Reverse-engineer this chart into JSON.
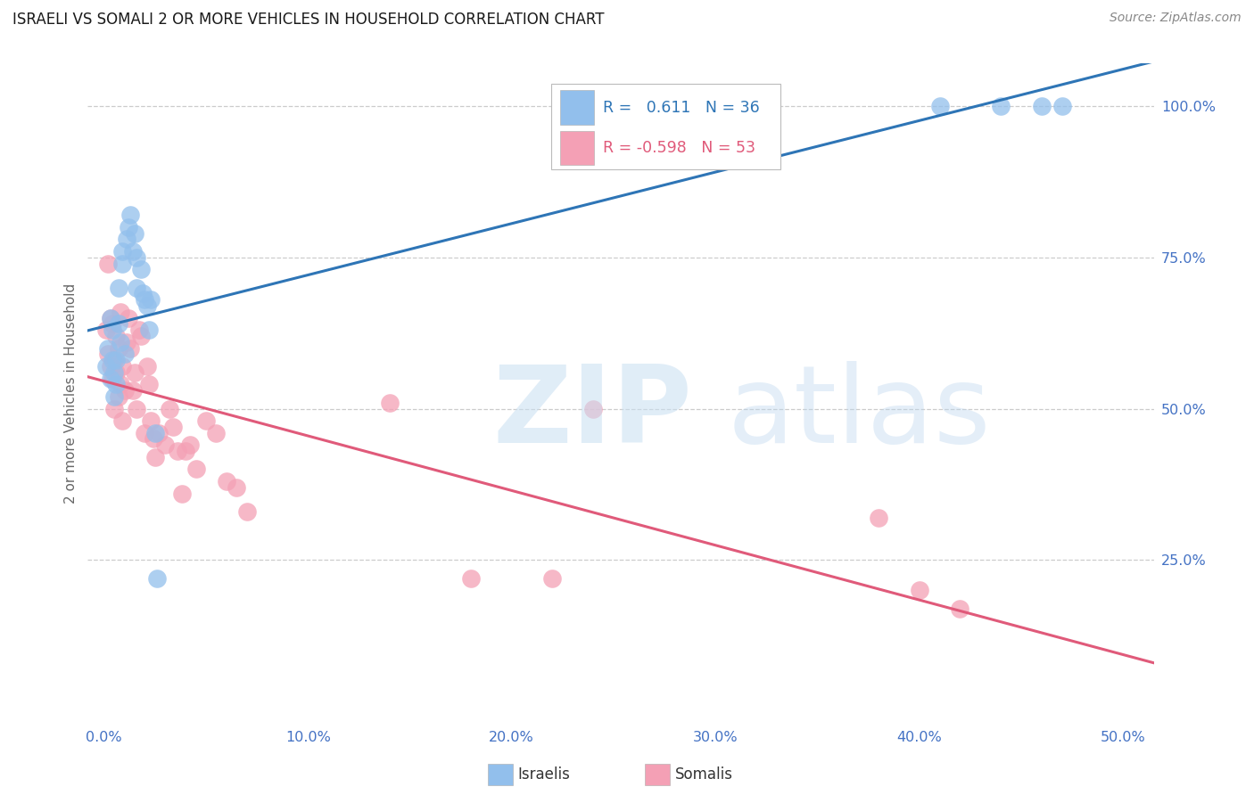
{
  "title": "ISRAELI VS SOMALI 2 OR MORE VEHICLES IN HOUSEHOLD CORRELATION CHART",
  "source": "Source: ZipAtlas.com",
  "ylabel": "2 or more Vehicles in Household",
  "x_tick_labels": [
    "0.0%",
    "10.0%",
    "20.0%",
    "30.0%",
    "40.0%",
    "50.0%"
  ],
  "x_tick_vals": [
    0.0,
    0.1,
    0.2,
    0.3,
    0.4,
    0.5
  ],
  "y_tick_labels": [
    "100.0%",
    "75.0%",
    "50.0%",
    "25.0%"
  ],
  "y_tick_vals": [
    1.0,
    0.75,
    0.5,
    0.25
  ],
  "xlim": [
    -0.008,
    0.515
  ],
  "ylim": [
    -0.02,
    1.07
  ],
  "legend_R_israeli": "0.611",
  "legend_N_israeli": "36",
  "legend_R_somali": "-0.598",
  "legend_N_somali": "53",
  "israeli_color": "#92BFEC",
  "somali_color": "#F4A0B5",
  "israeli_line_color": "#2E75B6",
  "somali_line_color": "#E05A7A",
  "israeli_x": [
    0.001,
    0.002,
    0.003,
    0.003,
    0.004,
    0.004,
    0.005,
    0.005,
    0.006,
    0.006,
    0.007,
    0.007,
    0.008,
    0.009,
    0.009,
    0.01,
    0.011,
    0.012,
    0.013,
    0.014,
    0.015,
    0.016,
    0.018,
    0.019,
    0.02,
    0.021,
    0.022,
    0.023,
    0.025,
    0.026,
    0.016,
    0.32,
    0.41,
    0.44,
    0.46,
    0.47
  ],
  "israeli_y": [
    0.57,
    0.6,
    0.55,
    0.65,
    0.58,
    0.63,
    0.52,
    0.56,
    0.54,
    0.58,
    0.64,
    0.7,
    0.61,
    0.74,
    0.76,
    0.59,
    0.78,
    0.8,
    0.82,
    0.76,
    0.79,
    0.7,
    0.73,
    0.69,
    0.68,
    0.67,
    0.63,
    0.68,
    0.46,
    0.22,
    0.75,
    1.0,
    1.0,
    1.0,
    1.0,
    1.0
  ],
  "somali_x": [
    0.001,
    0.002,
    0.002,
    0.003,
    0.003,
    0.004,
    0.004,
    0.005,
    0.005,
    0.006,
    0.006,
    0.007,
    0.007,
    0.008,
    0.008,
    0.009,
    0.009,
    0.01,
    0.011,
    0.012,
    0.013,
    0.014,
    0.015,
    0.016,
    0.017,
    0.018,
    0.02,
    0.021,
    0.022,
    0.023,
    0.024,
    0.025,
    0.027,
    0.03,
    0.032,
    0.034,
    0.036,
    0.038,
    0.04,
    0.042,
    0.045,
    0.05,
    0.055,
    0.06,
    0.065,
    0.07,
    0.14,
    0.18,
    0.22,
    0.24,
    0.38,
    0.4,
    0.42
  ],
  "somali_y": [
    0.63,
    0.59,
    0.74,
    0.57,
    0.65,
    0.55,
    0.64,
    0.5,
    0.58,
    0.56,
    0.62,
    0.52,
    0.6,
    0.54,
    0.66,
    0.48,
    0.57,
    0.53,
    0.61,
    0.65,
    0.6,
    0.53,
    0.56,
    0.5,
    0.63,
    0.62,
    0.46,
    0.57,
    0.54,
    0.48,
    0.45,
    0.42,
    0.46,
    0.44,
    0.5,
    0.47,
    0.43,
    0.36,
    0.43,
    0.44,
    0.4,
    0.48,
    0.46,
    0.38,
    0.37,
    0.33,
    0.51,
    0.22,
    0.22,
    0.5,
    0.32,
    0.2,
    0.17
  ]
}
